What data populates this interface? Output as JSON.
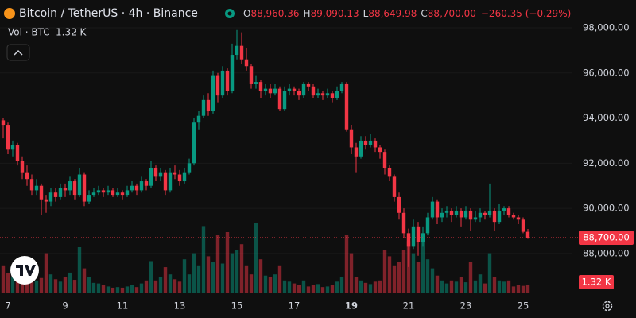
{
  "chart_data": {
    "type": "candlestick",
    "title": "Bitcoin / TetherUS · 4h · Binance",
    "header": {
      "o": "O",
      "o_value": "88,960.36",
      "h": "H",
      "h_value": "89,090.13",
      "l": "L",
      "l_value": "88,649.98",
      "c": "C",
      "c_value": "88,700.00",
      "change": "−260.35 (−0.29%)"
    },
    "volume_title": "Vol · BTC",
    "volume_last_label": "1.32 K",
    "last_price_label": "88,700.00",
    "up_color": "#089981",
    "down_color": "#f23645",
    "grid": true,
    "ylim": [
      86200,
      98950
    ],
    "yticks": [
      {
        "value": 88000,
        "label": "88,000.00"
      },
      {
        "value": 90000,
        "label": "90,000.00"
      },
      {
        "value": 92000,
        "label": "92,000.00"
      },
      {
        "value": 94000,
        "label": "94,000.00"
      },
      {
        "value": 96000,
        "label": "96,000.00"
      },
      {
        "value": 98000,
        "label": "98,000.00"
      }
    ],
    "categories": [
      null,
      "7",
      null,
      null,
      null,
      null,
      null,
      null,
      null,
      null,
      null,
      null,
      null,
      "9",
      null,
      null,
      null,
      null,
      null,
      null,
      null,
      null,
      null,
      null,
      null,
      "11",
      null,
      null,
      null,
      null,
      null,
      null,
      null,
      null,
      null,
      null,
      null,
      "13",
      null,
      null,
      null,
      null,
      null,
      null,
      null,
      null,
      null,
      null,
      null,
      "15",
      null,
      null,
      null,
      null,
      null,
      null,
      null,
      null,
      null,
      null,
      null,
      "17",
      null,
      null,
      null,
      null,
      null,
      null,
      null,
      null,
      null,
      null,
      null,
      "19",
      null,
      null,
      null,
      null,
      null,
      null,
      null,
      null,
      null,
      null,
      null,
      "21",
      null,
      null,
      null,
      null,
      null,
      null,
      null,
      null,
      null,
      null,
      null,
      "23",
      null,
      null,
      null,
      null,
      null,
      null,
      null,
      null,
      null,
      null,
      null,
      "25",
      null
    ],
    "candles": [
      [
        93900,
        94000,
        93100,
        93700
      ],
      [
        93700,
        93800,
        92400,
        92600
      ],
      [
        92600,
        93000,
        92300,
        92800
      ],
      [
        92800,
        92900,
        91900,
        92100
      ],
      [
        92100,
        92300,
        91300,
        91600
      ],
      [
        91600,
        91900,
        91000,
        91300
      ],
      [
        91300,
        91500,
        90600,
        90800
      ],
      [
        90800,
        91300,
        90600,
        91000
      ],
      [
        91000,
        91100,
        89700,
        90400
      ],
      [
        90400,
        90600,
        89800,
        90300
      ],
      [
        90300,
        90900,
        90100,
        90700
      ],
      [
        90700,
        90900,
        90300,
        90500
      ],
      [
        90500,
        91100,
        90400,
        90900
      ],
      [
        90900,
        91100,
        90500,
        90800
      ],
      [
        90800,
        91400,
        90600,
        91200
      ],
      [
        91200,
        91300,
        90400,
        90600
      ],
      [
        90600,
        91800,
        90500,
        91500
      ],
      [
        91500,
        91600,
        90100,
        90300
      ],
      [
        90300,
        90800,
        90200,
        90600
      ],
      [
        90600,
        90900,
        90500,
        90700
      ],
      [
        90700,
        91000,
        90600,
        90800
      ],
      [
        90800,
        90900,
        90500,
        90700
      ],
      [
        90700,
        91000,
        90600,
        90800
      ],
      [
        90800,
        90900,
        90500,
        90600
      ],
      [
        90600,
        90900,
        90500,
        90700
      ],
      [
        90700,
        90800,
        90400,
        90600
      ],
      [
        90600,
        91000,
        90500,
        90800
      ],
      [
        90800,
        91200,
        90700,
        91000
      ],
      [
        91000,
        91100,
        90600,
        90800
      ],
      [
        90800,
        91400,
        90700,
        91200
      ],
      [
        91200,
        91300,
        90800,
        91000
      ],
      [
        91000,
        92100,
        90900,
        91800
      ],
      [
        91800,
        91900,
        91200,
        91400
      ],
      [
        91400,
        91800,
        91200,
        91600
      ],
      [
        91600,
        91700,
        90600,
        90800
      ],
      [
        90800,
        91800,
        90700,
        91600
      ],
      [
        91600,
        91900,
        91300,
        91500
      ],
      [
        91500,
        91700,
        91000,
        91200
      ],
      [
        91200,
        91800,
        91100,
        91600
      ],
      [
        91600,
        92200,
        91500,
        92000
      ],
      [
        92000,
        94000,
        91900,
        93800
      ],
      [
        93800,
        94300,
        93500,
        94100
      ],
      [
        94100,
        95000,
        94000,
        94800
      ],
      [
        94800,
        95100,
        94100,
        94300
      ],
      [
        94300,
        96100,
        94200,
        95900
      ],
      [
        95900,
        96000,
        94700,
        95000
      ],
      [
        95000,
        96300,
        94900,
        96100
      ],
      [
        96100,
        96200,
        95000,
        95200
      ],
      [
        95200,
        97300,
        95100,
        96800
      ],
      [
        96800,
        97900,
        96600,
        97200
      ],
      [
        97200,
        97800,
        96400,
        96600
      ],
      [
        96600,
        97100,
        96100,
        96300
      ],
      [
        96300,
        96400,
        95300,
        95500
      ],
      [
        95500,
        95900,
        95300,
        95600
      ],
      [
        95600,
        95700,
        94900,
        95200
      ],
      [
        95200,
        95500,
        95000,
        95300
      ],
      [
        95300,
        95500,
        94900,
        95100
      ],
      [
        95100,
        95500,
        95000,
        95300
      ],
      [
        95300,
        95400,
        94300,
        94400
      ],
      [
        94400,
        95400,
        94300,
        95200
      ],
      [
        95200,
        95500,
        95000,
        95300
      ],
      [
        95300,
        95400,
        95000,
        95200
      ],
      [
        95200,
        95300,
        94800,
        95000
      ],
      [
        95000,
        95600,
        94900,
        95500
      ],
      [
        95500,
        95600,
        95200,
        95400
      ],
      [
        95400,
        95500,
        94900,
        95000
      ],
      [
        95000,
        95300,
        94900,
        95100
      ],
      [
        95100,
        95200,
        94800,
        95000
      ],
      [
        95000,
        95300,
        94900,
        95100
      ],
      [
        95100,
        95200,
        94700,
        94900
      ],
      [
        94900,
        95400,
        94800,
        95200
      ],
      [
        95200,
        95600,
        95100,
        95500
      ],
      [
        95500,
        95600,
        93400,
        93500
      ],
      [
        93500,
        93700,
        92400,
        92700
      ],
      [
        92700,
        92900,
        91600,
        92300
      ],
      [
        92300,
        93200,
        92200,
        93000
      ],
      [
        93000,
        93200,
        92600,
        92800
      ],
      [
        92800,
        93300,
        92700,
        93000
      ],
      [
        93000,
        93100,
        92500,
        92700
      ],
      [
        92700,
        92800,
        92200,
        92500
      ],
      [
        92500,
        92600,
        91500,
        91800
      ],
      [
        91800,
        91900,
        91200,
        91400
      ],
      [
        91400,
        91500,
        90300,
        90500
      ],
      [
        90500,
        90700,
        89500,
        89800
      ],
      [
        89800,
        90000,
        88700,
        88900
      ],
      [
        88900,
        89100,
        87400,
        88300
      ],
      [
        88300,
        89500,
        88200,
        89200
      ],
      [
        89200,
        89400,
        87900,
        88500
      ],
      [
        88500,
        89200,
        88300,
        88900
      ],
      [
        88900,
        89800,
        88800,
        89600
      ],
      [
        89600,
        90500,
        89500,
        90300
      ],
      [
        90300,
        90400,
        89300,
        89600
      ],
      [
        89600,
        90000,
        89400,
        89800
      ],
      [
        89800,
        90100,
        89600,
        89900
      ],
      [
        89900,
        90000,
        89400,
        89700
      ],
      [
        89700,
        90100,
        89600,
        89900
      ],
      [
        89900,
        90000,
        89200,
        89600
      ],
      [
        89600,
        90100,
        89500,
        89900
      ],
      [
        89900,
        90000,
        89000,
        89500
      ],
      [
        89500,
        89900,
        89400,
        89600
      ],
      [
        89600,
        90000,
        89400,
        89800
      ],
      [
        89800,
        89900,
        89500,
        89700
      ],
      [
        89700,
        91100,
        89600,
        89900
      ],
      [
        89900,
        90000,
        89000,
        89400
      ],
      [
        89400,
        90200,
        89300,
        89900
      ],
      [
        89900,
        90100,
        89700,
        90000
      ],
      [
        90000,
        90100,
        89600,
        89700
      ],
      [
        89700,
        89800,
        89500,
        89600
      ],
      [
        89600,
        89700,
        89300,
        89500
      ],
      [
        89500,
        89600,
        88900,
        88960.36
      ],
      [
        88960.36,
        89090.13,
        88649.98,
        88700
      ]
    ],
    "volume": [
      4.5,
      3.2,
      2.5,
      3.0,
      2.8,
      2.2,
      3.5,
      2.0,
      2.4,
      6.5,
      3.0,
      2.2,
      1.8,
      2.5,
      3.3,
      2.1,
      7.5,
      4.0,
      2.5,
      1.6,
      1.5,
      1.2,
      1.0,
      0.8,
      0.9,
      0.8,
      1.0,
      1.2,
      0.9,
      1.5,
      2.0,
      5.2,
      2.0,
      2.5,
      4.2,
      3.0,
      2.2,
      1.8,
      5.5,
      3.0,
      6.5,
      4.5,
      11.0,
      6.0,
      5.0,
      9.5,
      4.8,
      10.0,
      6.5,
      7.0,
      8.0,
      4.5,
      3.0,
      11.5,
      5.5,
      2.8,
      2.5,
      3.0,
      4.5,
      2.0,
      1.8,
      1.5,
      1.2,
      2.0,
      1.0,
      1.2,
      1.4,
      0.9,
      1.0,
      1.3,
      1.8,
      2.5,
      9.5,
      6.5,
      2.5,
      2.0,
      1.6,
      1.4,
      1.8,
      2.0,
      7.0,
      6.0,
      4.5,
      5.0,
      7.0,
      8.5,
      6.5,
      5.0,
      9.5,
      5.5,
      4.0,
      2.8,
      2.0,
      1.5,
      2.0,
      1.8,
      2.5,
      1.7,
      5.0,
      2.0,
      3.0,
      1.5,
      6.5,
      2.5,
      2.0,
      1.8,
      2.0,
      1.0,
      1.2,
      1.1,
      1.32
    ]
  }
}
